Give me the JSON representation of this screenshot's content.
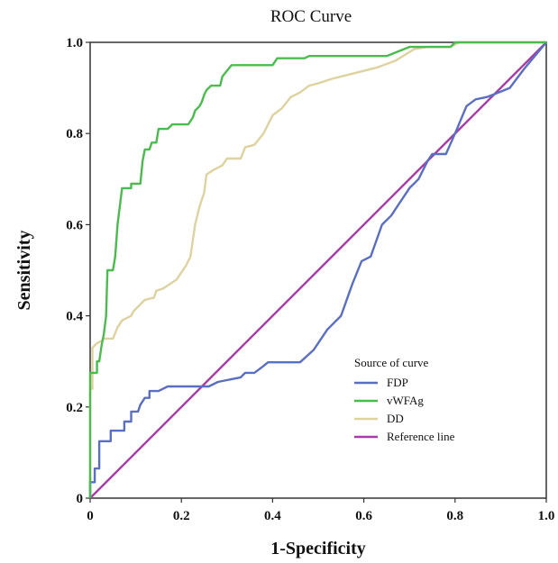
{
  "chart_data": {
    "type": "line",
    "title": "ROC Curve",
    "xlabel": "1-Specificity",
    "ylabel": "Sensitivity",
    "xlim": [
      0,
      1
    ],
    "ylim": [
      0,
      1
    ],
    "xticks": [
      "0",
      "0.2",
      "0.4",
      "0.6",
      "0.8",
      "1.0"
    ],
    "yticks": [
      "0",
      "0.2",
      "0.4",
      "0.6",
      "0.8",
      "1.0"
    ],
    "grid": false,
    "legend": {
      "title": "Source of curve",
      "position": "lower-right"
    },
    "series": [
      {
        "name": "FDP",
        "color": "#5b6fc0",
        "points": [
          [
            0,
            0
          ],
          [
            0,
            0.035
          ],
          [
            0.01,
            0.035
          ],
          [
            0.01,
            0.065
          ],
          [
            0.02,
            0.065
          ],
          [
            0.02,
            0.125
          ],
          [
            0.045,
            0.125
          ],
          [
            0.045,
            0.148
          ],
          [
            0.075,
            0.148
          ],
          [
            0.075,
            0.168
          ],
          [
            0.09,
            0.168
          ],
          [
            0.09,
            0.19
          ],
          [
            0.105,
            0.19
          ],
          [
            0.11,
            0.205
          ],
          [
            0.12,
            0.22
          ],
          [
            0.13,
            0.22
          ],
          [
            0.13,
            0.235
          ],
          [
            0.15,
            0.235
          ],
          [
            0.17,
            0.245
          ],
          [
            0.26,
            0.245
          ],
          [
            0.28,
            0.255
          ],
          [
            0.33,
            0.265
          ],
          [
            0.34,
            0.275
          ],
          [
            0.36,
            0.275
          ],
          [
            0.38,
            0.29
          ],
          [
            0.39,
            0.298
          ],
          [
            0.46,
            0.298
          ],
          [
            0.49,
            0.325
          ],
          [
            0.52,
            0.37
          ],
          [
            0.55,
            0.4
          ],
          [
            0.575,
            0.47
          ],
          [
            0.595,
            0.52
          ],
          [
            0.615,
            0.53
          ],
          [
            0.64,
            0.6
          ],
          [
            0.66,
            0.62
          ],
          [
            0.68,
            0.65
          ],
          [
            0.7,
            0.68
          ],
          [
            0.72,
            0.7
          ],
          [
            0.74,
            0.74
          ],
          [
            0.75,
            0.755
          ],
          [
            0.78,
            0.755
          ],
          [
            0.8,
            0.8
          ],
          [
            0.825,
            0.86
          ],
          [
            0.845,
            0.875
          ],
          [
            0.87,
            0.88
          ],
          [
            0.895,
            0.89
          ],
          [
            0.92,
            0.9
          ],
          [
            0.95,
            0.94
          ],
          [
            1.0,
            1.0
          ]
        ]
      },
      {
        "name": "vWFAg",
        "color": "#4cbb4f",
        "points": [
          [
            0,
            0
          ],
          [
            0,
            0.275
          ],
          [
            0.015,
            0.275
          ],
          [
            0.015,
            0.3
          ],
          [
            0.02,
            0.3
          ],
          [
            0.025,
            0.335
          ],
          [
            0.03,
            0.36
          ],
          [
            0.035,
            0.4
          ],
          [
            0.038,
            0.5
          ],
          [
            0.05,
            0.5
          ],
          [
            0.055,
            0.53
          ],
          [
            0.06,
            0.6
          ],
          [
            0.065,
            0.64
          ],
          [
            0.07,
            0.68
          ],
          [
            0.09,
            0.68
          ],
          [
            0.09,
            0.69
          ],
          [
            0.11,
            0.69
          ],
          [
            0.115,
            0.74
          ],
          [
            0.12,
            0.765
          ],
          [
            0.13,
            0.765
          ],
          [
            0.135,
            0.78
          ],
          [
            0.145,
            0.78
          ],
          [
            0.15,
            0.81
          ],
          [
            0.17,
            0.81
          ],
          [
            0.18,
            0.82
          ],
          [
            0.215,
            0.82
          ],
          [
            0.225,
            0.835
          ],
          [
            0.23,
            0.85
          ],
          [
            0.24,
            0.86
          ],
          [
            0.245,
            0.87
          ],
          [
            0.25,
            0.885
          ],
          [
            0.255,
            0.895
          ],
          [
            0.265,
            0.905
          ],
          [
            0.285,
            0.905
          ],
          [
            0.29,
            0.925
          ],
          [
            0.31,
            0.95
          ],
          [
            0.4,
            0.95
          ],
          [
            0.41,
            0.965
          ],
          [
            0.47,
            0.965
          ],
          [
            0.48,
            0.97
          ],
          [
            0.65,
            0.97
          ],
          [
            0.7,
            0.99
          ],
          [
            0.79,
            0.99
          ],
          [
            0.8,
            1.0
          ],
          [
            1.0,
            1.0
          ]
        ]
      },
      {
        "name": "DD",
        "color": "#ddd2a0",
        "points": [
          [
            0,
            0
          ],
          [
            0,
            0.24
          ],
          [
            0.005,
            0.24
          ],
          [
            0.005,
            0.33
          ],
          [
            0.015,
            0.34
          ],
          [
            0.025,
            0.345
          ],
          [
            0.03,
            0.35
          ],
          [
            0.05,
            0.35
          ],
          [
            0.06,
            0.375
          ],
          [
            0.07,
            0.39
          ],
          [
            0.09,
            0.4
          ],
          [
            0.095,
            0.41
          ],
          [
            0.105,
            0.42
          ],
          [
            0.12,
            0.435
          ],
          [
            0.14,
            0.44
          ],
          [
            0.145,
            0.455
          ],
          [
            0.16,
            0.46
          ],
          [
            0.175,
            0.47
          ],
          [
            0.19,
            0.48
          ],
          [
            0.2,
            0.495
          ],
          [
            0.21,
            0.51
          ],
          [
            0.22,
            0.53
          ],
          [
            0.23,
            0.6
          ],
          [
            0.24,
            0.64
          ],
          [
            0.25,
            0.67
          ],
          [
            0.255,
            0.71
          ],
          [
            0.27,
            0.72
          ],
          [
            0.29,
            0.73
          ],
          [
            0.3,
            0.745
          ],
          [
            0.33,
            0.745
          ],
          [
            0.34,
            0.77
          ],
          [
            0.36,
            0.775
          ],
          [
            0.38,
            0.8
          ],
          [
            0.4,
            0.84
          ],
          [
            0.42,
            0.855
          ],
          [
            0.44,
            0.88
          ],
          [
            0.46,
            0.89
          ],
          [
            0.48,
            0.905
          ],
          [
            0.5,
            0.91
          ],
          [
            0.53,
            0.92
          ],
          [
            0.57,
            0.93
          ],
          [
            0.63,
            0.945
          ],
          [
            0.67,
            0.96
          ],
          [
            0.71,
            0.985
          ],
          [
            0.74,
            0.99
          ],
          [
            0.79,
            0.99
          ],
          [
            0.81,
            1.0
          ],
          [
            1.0,
            1.0
          ]
        ]
      },
      {
        "name": "Reference line",
        "color": "#a43ea4",
        "points": [
          [
            0,
            0
          ],
          [
            1,
            1
          ]
        ]
      }
    ]
  }
}
